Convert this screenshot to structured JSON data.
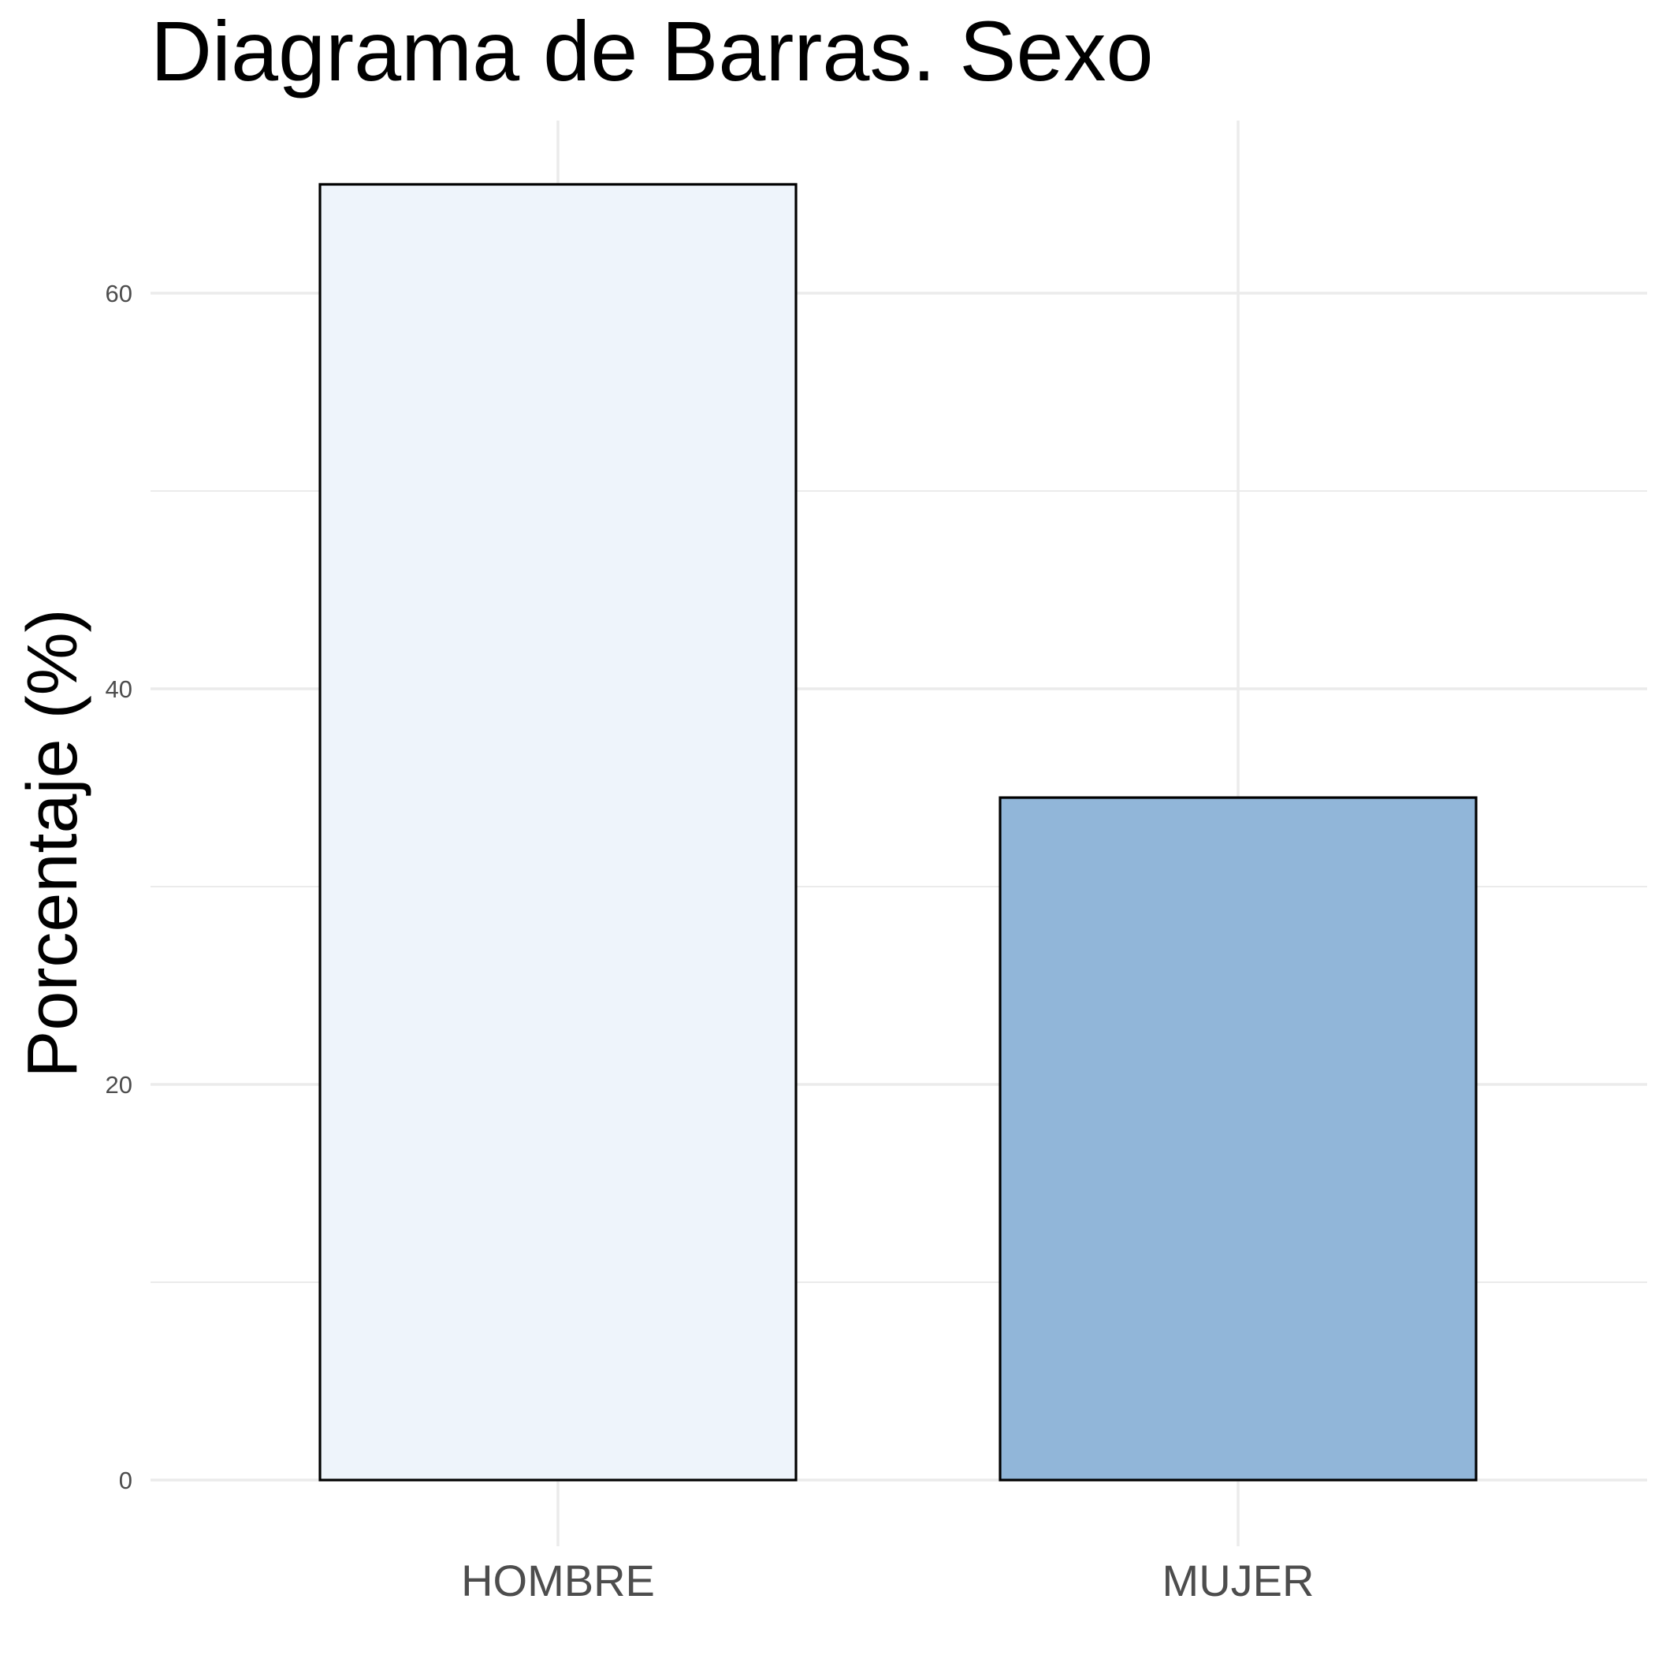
{
  "chart_data": {
    "type": "bar",
    "title": "Diagrama de Barras. Sexo",
    "xlabel": "",
    "ylabel": "Porcentaje (%)",
    "categories": [
      "HOMBRE",
      "MUJER"
    ],
    "values": [
      65.5,
      34.5
    ],
    "bar_colors": [
      "#eef4fb",
      "#91b6d9"
    ],
    "bar_border_color": "#000000",
    "ylim": [
      -3.5,
      68.8
    ],
    "yticks": [
      0,
      20,
      40,
      60
    ],
    "ytick_labels": [
      "0",
      "20",
      "40",
      "60"
    ],
    "grid": true,
    "legend": "none"
  }
}
